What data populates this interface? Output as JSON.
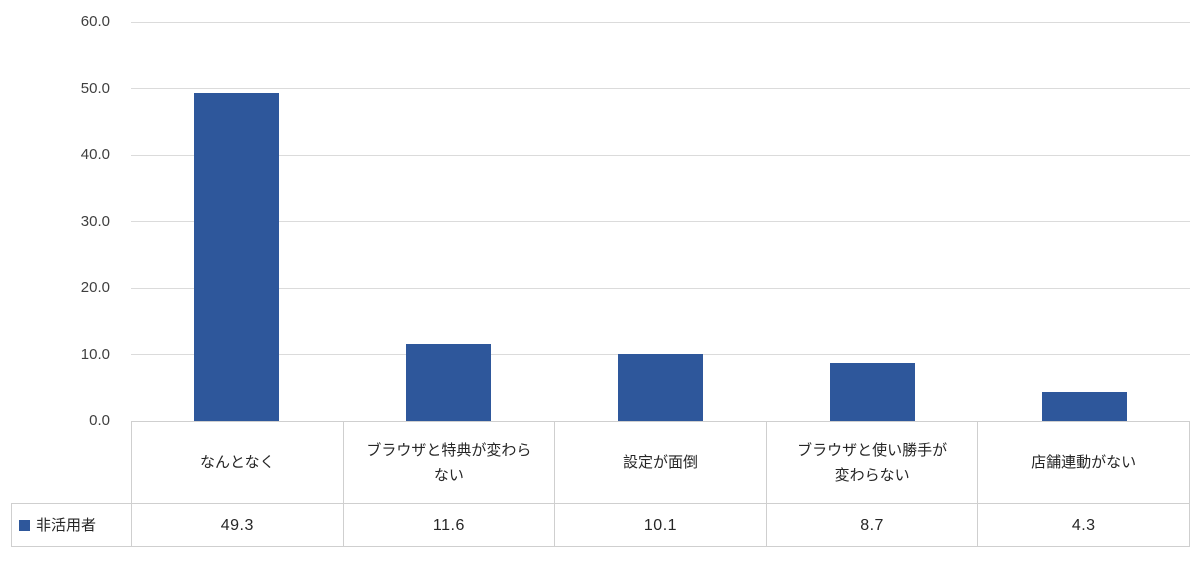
{
  "chart_data": {
    "type": "bar",
    "categories": [
      "なんとなく",
      "ブラウザと特典が変わらない",
      "設定が面倒",
      "ブラウザと使い勝手が変わらない",
      "店舗連動がない"
    ],
    "series": [
      {
        "name": "非活用者",
        "values": [
          49.3,
          11.6,
          10.1,
          8.7,
          4.3
        ]
      }
    ],
    "title": "",
    "xlabel": "",
    "ylabel": "",
    "ylim": [
      0,
      60
    ],
    "ytick_labels": [
      "0.0",
      "10.0",
      "20.0",
      "30.0",
      "40.0",
      "50.0",
      "60.0"
    ],
    "grid": true,
    "legend_position": "bottom-left-table",
    "bar_color": "#2e579b"
  },
  "table": {
    "legend": {
      "label": "非活用者",
      "marker_color": "#2e579b",
      "marker": "square"
    },
    "category_cells": [
      "なんとなく",
      "ブラウザと特典が変わら\nない",
      "設定が面倒",
      "ブラウザと使い勝手が\n変わらない",
      "店舗連動がない"
    ],
    "value_cells": [
      "49.3",
      "11.6",
      "10.1",
      "8.7",
      "4.3"
    ]
  },
  "colors": {
    "bar": "#2e579b",
    "gridline": "#dbdbdb",
    "table_border": "#cfcfcf",
    "axis_text": "#3f3f3f",
    "cell_text": "#262626",
    "background": "#ffffff"
  }
}
